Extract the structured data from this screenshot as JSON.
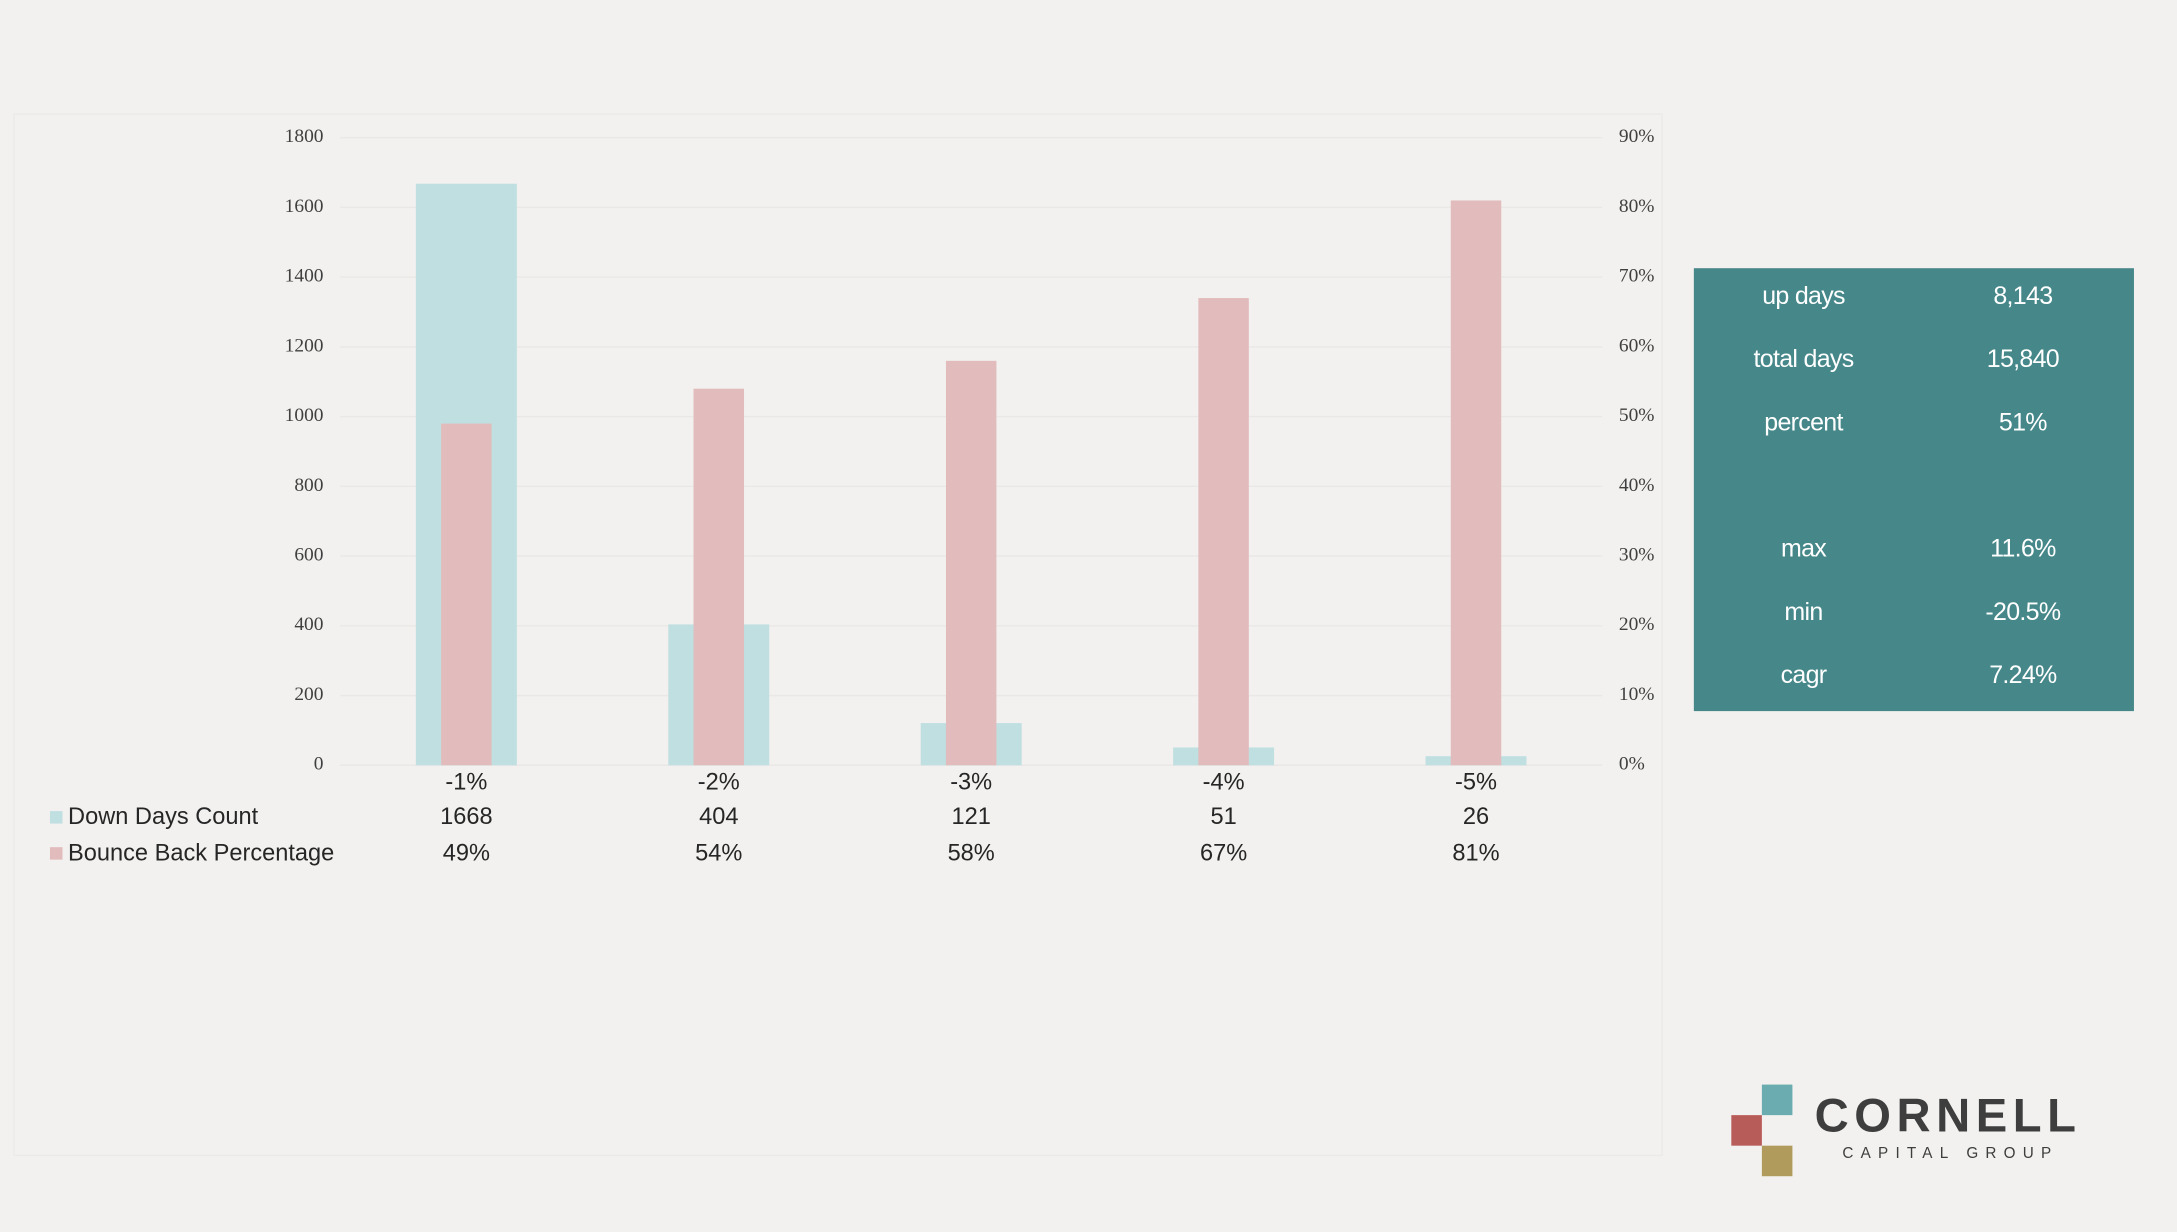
{
  "chart_data": {
    "type": "bar",
    "categories": [
      "-1%",
      "-2%",
      "-3%",
      "-4%",
      "-5%"
    ],
    "series": [
      {
        "name": "Down Days Count",
        "color": "#c0dfe1",
        "values": [
          1668,
          404,
          121,
          51,
          26
        ]
      },
      {
        "name": "Bounce Back Percentage",
        "color": "#e2bcbc",
        "axis": "y2",
        "values": [
          49,
          54,
          58,
          67,
          81
        ],
        "value_labels": [
          "49%",
          "54%",
          "58%",
          "67%",
          "81%"
        ]
      }
    ],
    "ylim": [
      0,
      1800
    ],
    "yticks": [
      0,
      200,
      400,
      600,
      800,
      1000,
      1200,
      1400,
      1600,
      1800
    ],
    "y2lim": [
      0,
      90
    ],
    "y2ticks": [
      {
        "value": 0,
        "label": "0%"
      },
      {
        "value": 10,
        "label": "10%"
      },
      {
        "value": 20,
        "label": "20%"
      },
      {
        "value": 30,
        "label": "30%"
      },
      {
        "value": 40,
        "label": "40%"
      },
      {
        "value": 50,
        "label": "50%"
      },
      {
        "value": 60,
        "label": "60%"
      },
      {
        "value": 70,
        "label": "70%"
      },
      {
        "value": 80,
        "label": "80%"
      },
      {
        "value": 90,
        "label": "90%"
      }
    ],
    "grid": true
  },
  "side_table": {
    "rows": [
      [
        "up days",
        "8,143"
      ],
      [
        "total days",
        "15,840"
      ],
      [
        "percent",
        "51%"
      ],
      [
        "max",
        "11.6%"
      ],
      [
        "min",
        "-20.5%"
      ],
      [
        "cagr",
        "7.24%"
      ]
    ]
  },
  "logo": {
    "name": "CORNELL",
    "tagline": "CAPITAL GROUP"
  }
}
